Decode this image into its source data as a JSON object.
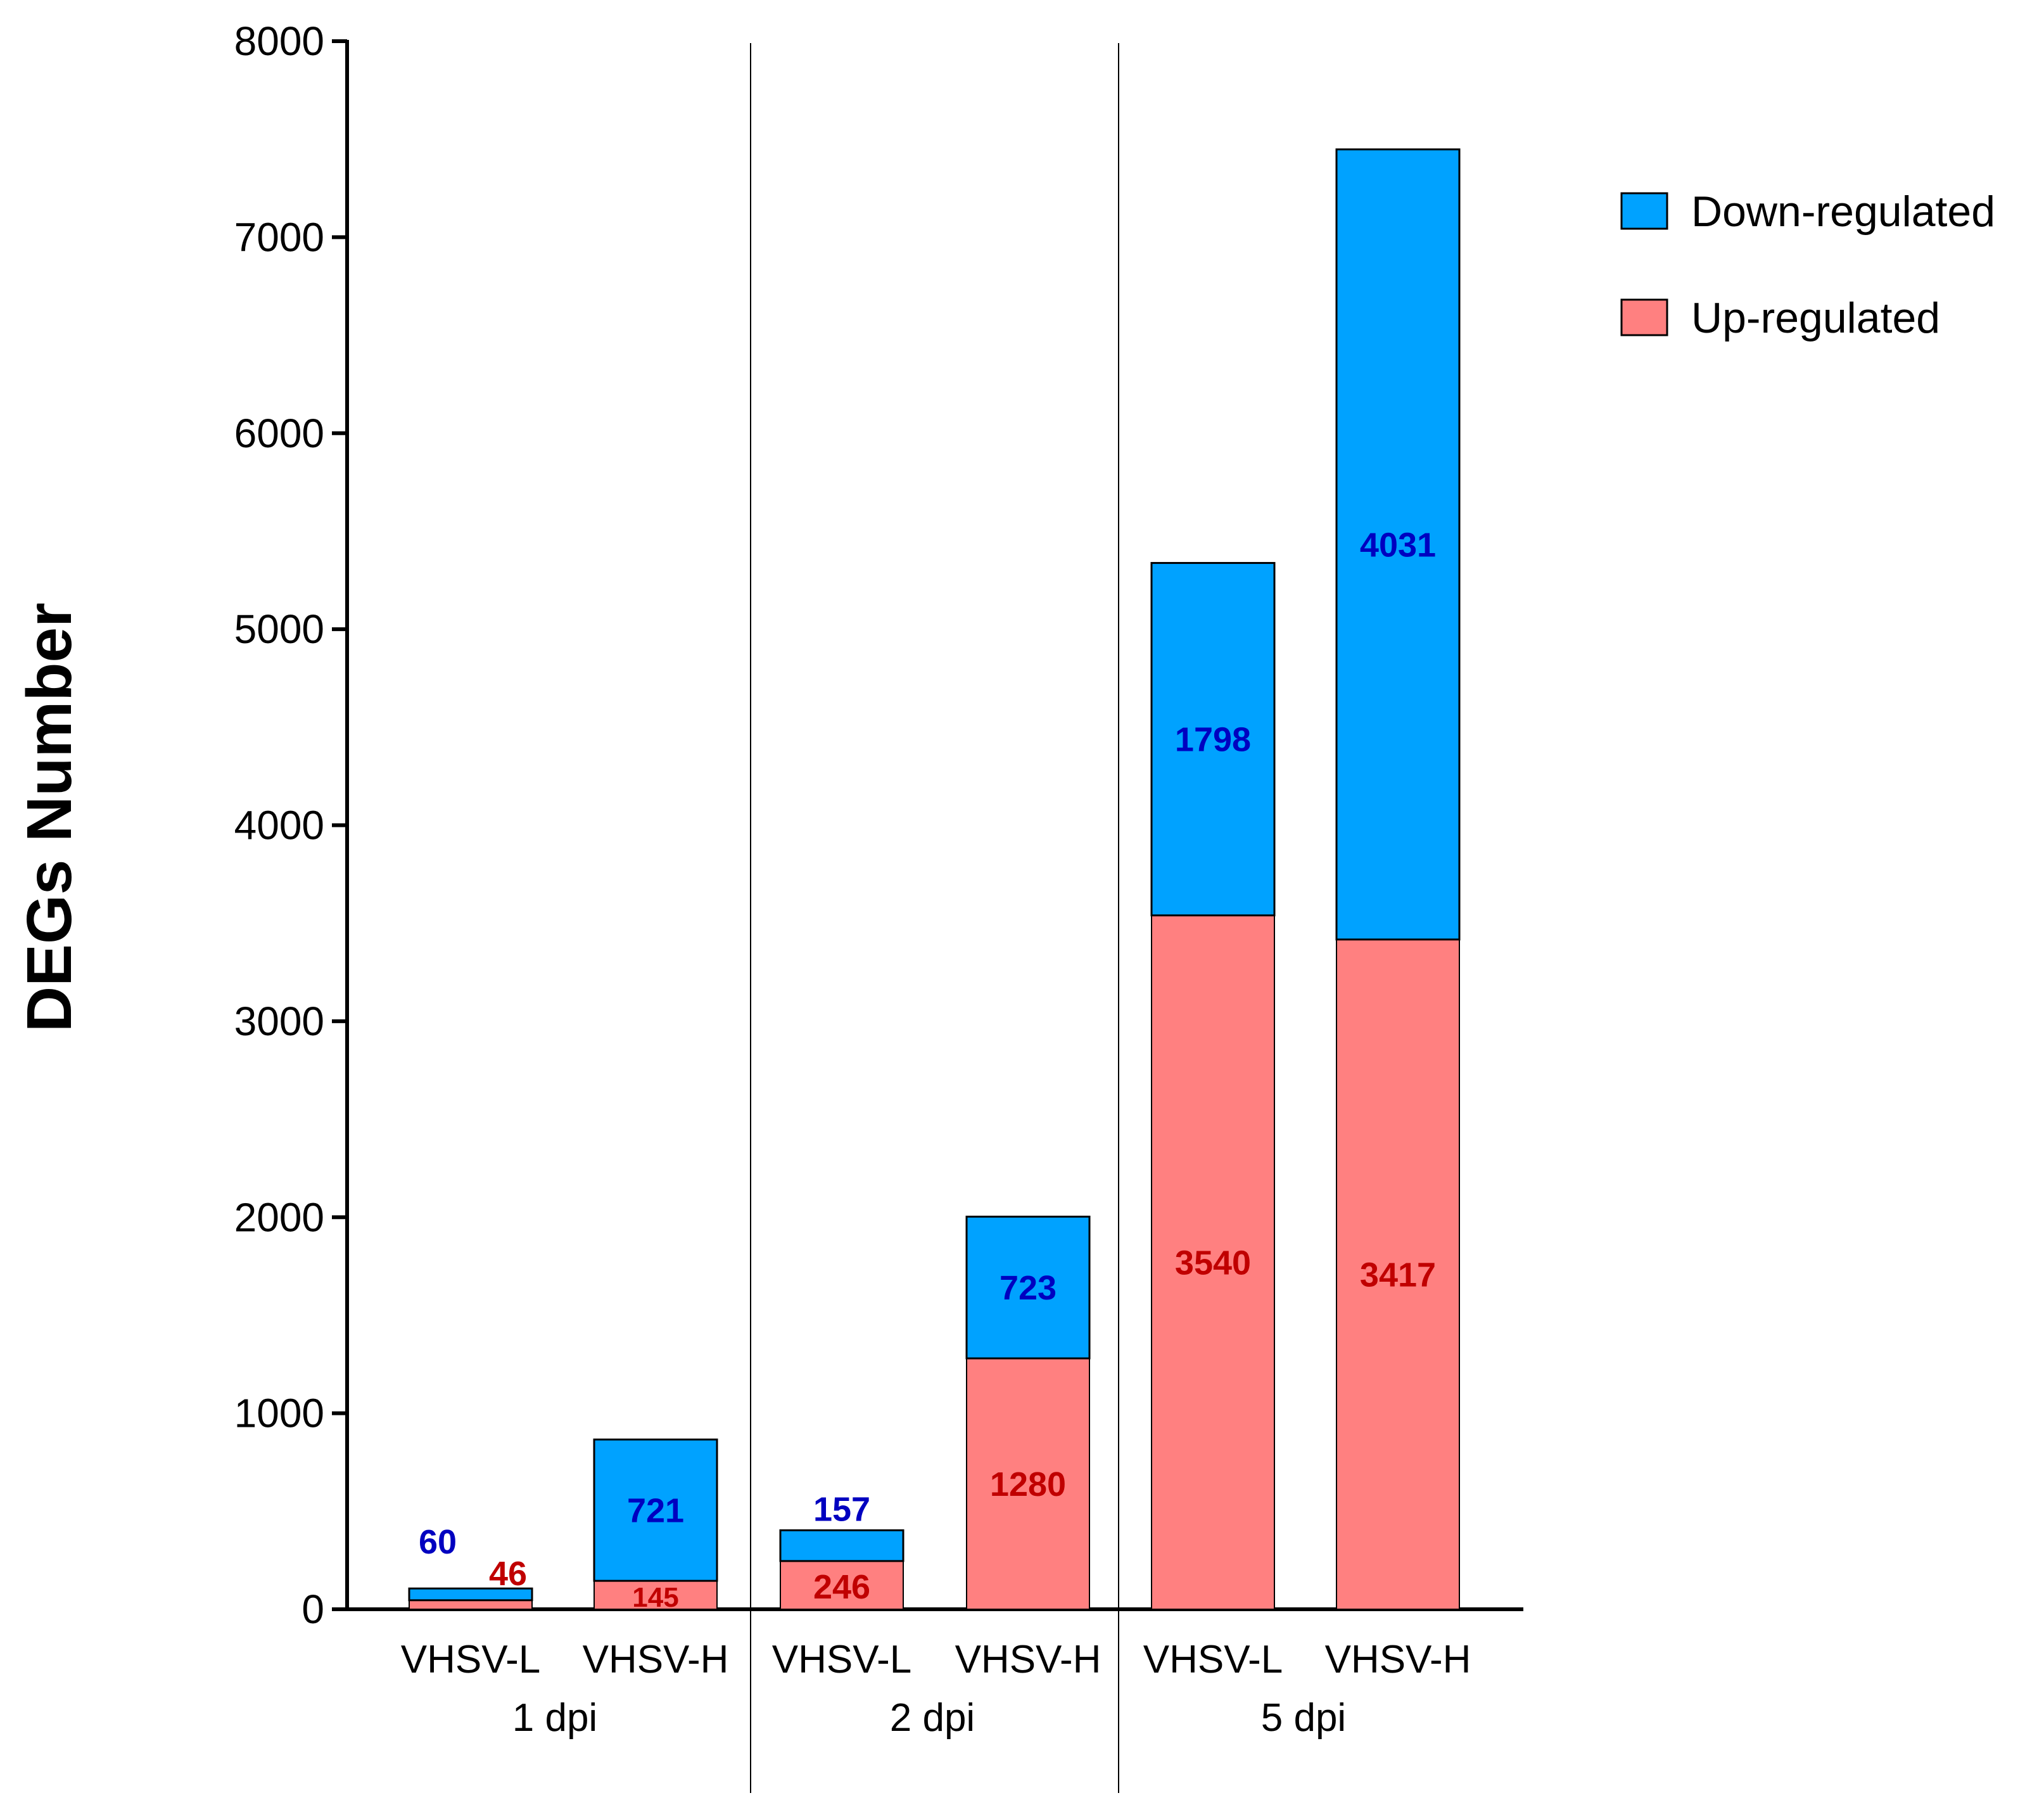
{
  "chart_data": {
    "type": "bar",
    "stacked": true,
    "title": "",
    "xlabel": "",
    "ylabel": "DEGs Number",
    "ylim": [
      0,
      8000
    ],
    "yticks": [
      0,
      1000,
      2000,
      3000,
      4000,
      5000,
      6000,
      7000,
      8000
    ],
    "grid": false,
    "legend_position": "top-right",
    "groups": [
      {
        "label": "1 dpi",
        "categories": [
          "VHSV-L",
          "VHSV-H"
        ]
      },
      {
        "label": "2 dpi",
        "categories": [
          "VHSV-L",
          "VHSV-H"
        ]
      },
      {
        "label": "5 dpi",
        "categories": [
          "VHSV-L",
          "VHSV-H"
        ]
      }
    ],
    "categories": [
      "VHSV-L",
      "VHSV-H",
      "VHSV-L",
      "VHSV-H",
      "VHSV-L",
      "VHSV-H"
    ],
    "series": [
      {
        "name": "Up-regulated",
        "color": "#ff8080",
        "label_color": "#c00000",
        "values": [
          46,
          145,
          246,
          1280,
          3540,
          3417
        ]
      },
      {
        "name": "Down-regulated",
        "color": "#00a2ff",
        "label_color": "#0000c0",
        "values": [
          60,
          721,
          157,
          723,
          1798,
          4031
        ]
      }
    ],
    "legend_order": [
      "Down-regulated",
      "Up-regulated"
    ]
  }
}
